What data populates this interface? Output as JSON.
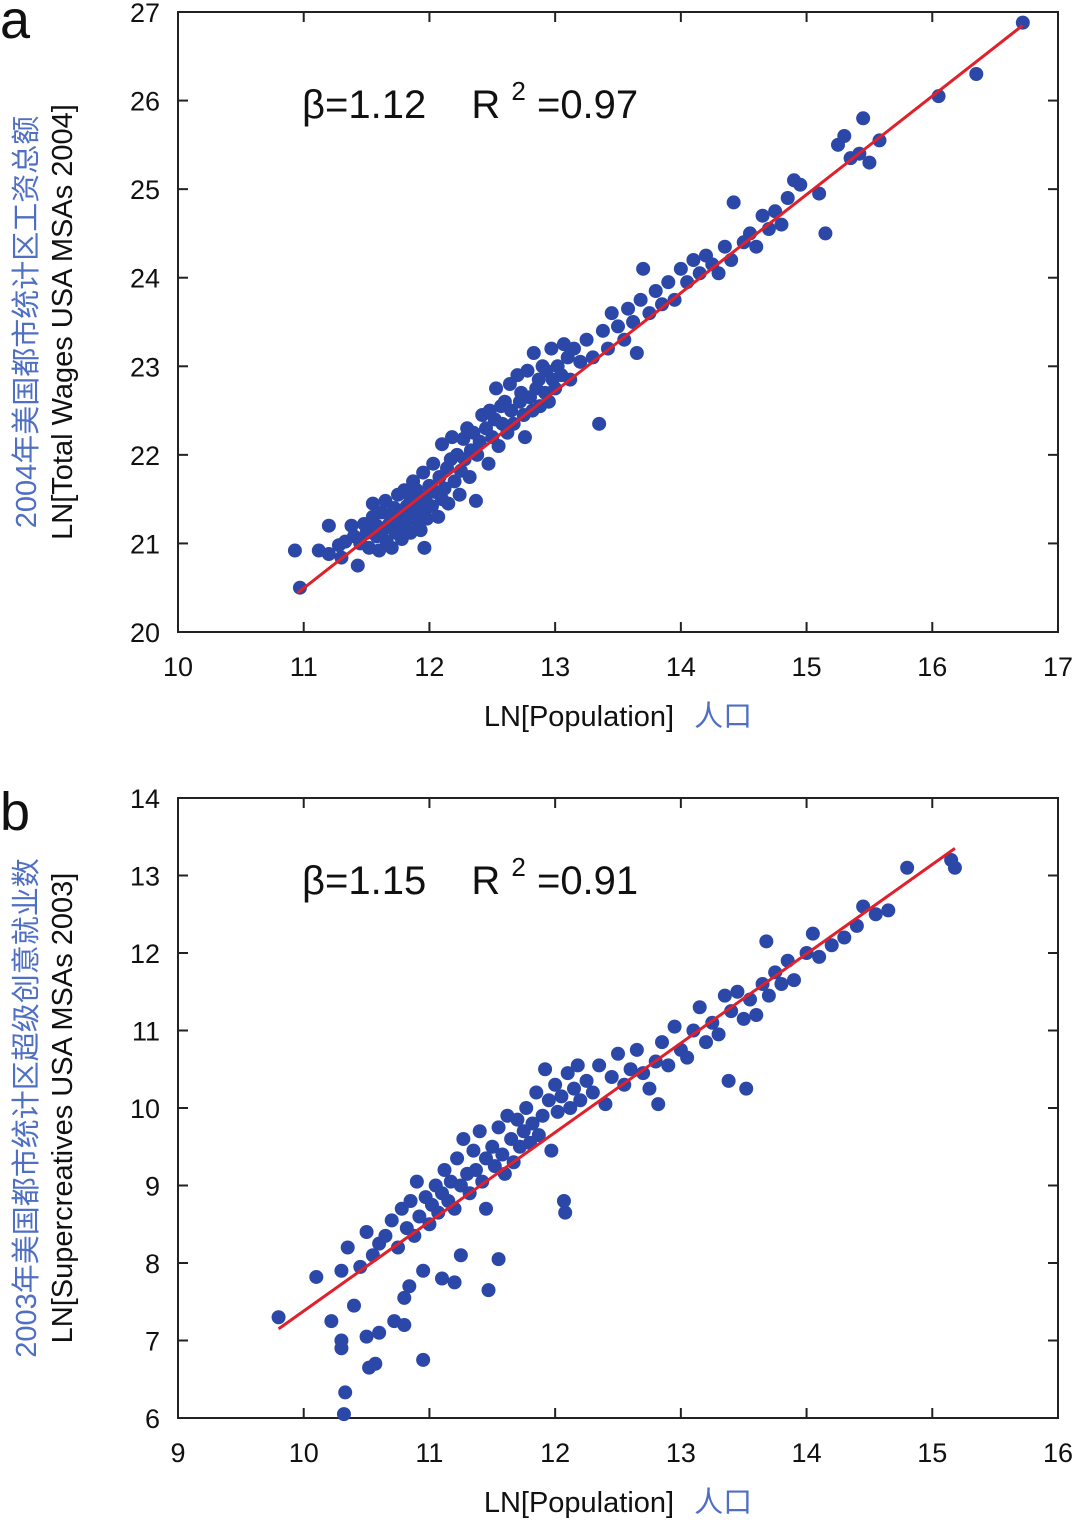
{
  "chart_data": [
    {
      "type": "scatter",
      "panel": "a",
      "annotation": {
        "beta": "β=1.12",
        "r2_prefix": "R",
        "r2_exp": "2",
        "r2_value": "=0.97"
      },
      "xlabel": "LN[Population]",
      "xlabel_cn": "人口",
      "ylabel": "LN[Total Wages USA MSAs 2004]",
      "ylabel_cn": "2004年美国都市统计区工资总额",
      "xlim": [
        10,
        17
      ],
      "ylim": [
        20,
        27
      ],
      "xticks": [
        "10",
        "11",
        "12",
        "13",
        "14",
        "15",
        "16",
        "17"
      ],
      "yticks": [
        "20",
        "21",
        "22",
        "23",
        "24",
        "25",
        "26",
        "27"
      ],
      "fit": {
        "x": [
          10.95,
          16.72
        ],
        "y": [
          20.44,
          26.85
        ]
      },
      "colors": {
        "points": "#2b47a8",
        "fit": "#e0202a",
        "cn_text": "#4f6fc4"
      },
      "points": [
        [
          10.93,
          20.92
        ],
        [
          10.97,
          20.5
        ],
        [
          11.12,
          20.92
        ],
        [
          11.2,
          20.88
        ],
        [
          11.2,
          21.2
        ],
        [
          11.28,
          20.98
        ],
        [
          11.3,
          20.84
        ],
        [
          11.33,
          21.02
        ],
        [
          11.38,
          21.2
        ],
        [
          11.4,
          21.08
        ],
        [
          11.43,
          20.75
        ],
        [
          11.45,
          21.0
        ],
        [
          11.48,
          21.22
        ],
        [
          11.5,
          21.12
        ],
        [
          11.52,
          20.95
        ],
        [
          11.55,
          21.3
        ],
        [
          11.55,
          21.45
        ],
        [
          11.58,
          21.08
        ],
        [
          11.58,
          21.2
        ],
        [
          11.6,
          20.92
        ],
        [
          11.62,
          21.35
        ],
        [
          11.63,
          21.15
        ],
        [
          11.65,
          21.48
        ],
        [
          11.66,
          21.02
        ],
        [
          11.68,
          21.22
        ],
        [
          11.7,
          21.3
        ],
        [
          11.7,
          20.95
        ],
        [
          11.72,
          21.4
        ],
        [
          11.73,
          21.12
        ],
        [
          11.75,
          21.55
        ],
        [
          11.75,
          21.25
        ],
        [
          11.77,
          21.35
        ],
        [
          11.78,
          21.05
        ],
        [
          11.8,
          21.6
        ],
        [
          11.8,
          21.2
        ],
        [
          11.82,
          21.42
        ],
        [
          11.83,
          21.3
        ],
        [
          11.85,
          21.5
        ],
        [
          11.85,
          21.12
        ],
        [
          11.87,
          21.7
        ],
        [
          11.88,
          21.38
        ],
        [
          11.9,
          21.25
        ],
        [
          11.9,
          21.6
        ],
        [
          11.92,
          21.45
        ],
        [
          11.93,
          21.15
        ],
        [
          11.95,
          21.8
        ],
        [
          11.95,
          21.35
        ],
        [
          11.96,
          20.95
        ],
        [
          11.97,
          21.52
        ],
        [
          11.98,
          21.28
        ],
        [
          12.0,
          21.65
        ],
        [
          12.02,
          21.42
        ],
        [
          12.03,
          21.9
        ],
        [
          12.05,
          21.58
        ],
        [
          12.07,
          21.3
        ],
        [
          12.08,
          21.75
        ],
        [
          12.1,
          22.12
        ],
        [
          12.1,
          21.5
        ],
        [
          12.12,
          21.62
        ],
        [
          12.14,
          21.85
        ],
        [
          12.15,
          21.45
        ],
        [
          12.17,
          21.95
        ],
        [
          12.18,
          22.2
        ],
        [
          12.2,
          21.7
        ],
        [
          12.22,
          22.0
        ],
        [
          12.24,
          21.55
        ],
        [
          12.25,
          21.82
        ],
        [
          12.27,
          22.18
        ],
        [
          12.28,
          21.95
        ],
        [
          12.3,
          22.3
        ],
        [
          12.32,
          21.75
        ],
        [
          12.33,
          22.05
        ],
        [
          12.35,
          22.25
        ],
        [
          12.37,
          21.48
        ],
        [
          12.38,
          22.0
        ],
        [
          12.4,
          22.15
        ],
        [
          12.42,
          22.45
        ],
        [
          12.45,
          22.3
        ],
        [
          12.47,
          21.9
        ],
        [
          12.48,
          22.5
        ],
        [
          12.5,
          22.2
        ],
        [
          12.52,
          22.4
        ],
        [
          12.53,
          22.75
        ],
        [
          12.55,
          22.1
        ],
        [
          12.57,
          22.55
        ],
        [
          12.58,
          22.35
        ],
        [
          12.6,
          22.6
        ],
        [
          12.62,
          22.25
        ],
        [
          12.64,
          22.8
        ],
        [
          12.65,
          22.5
        ],
        [
          12.67,
          22.35
        ],
        [
          12.7,
          22.9
        ],
        [
          12.72,
          22.6
        ],
        [
          12.73,
          22.7
        ],
        [
          12.75,
          22.45
        ],
        [
          12.76,
          22.2
        ],
        [
          12.78,
          22.95
        ],
        [
          12.8,
          22.65
        ],
        [
          12.82,
          22.5
        ],
        [
          12.83,
          23.15
        ],
        [
          12.85,
          22.75
        ],
        [
          12.87,
          22.85
        ],
        [
          12.88,
          22.55
        ],
        [
          12.9,
          23.0
        ],
        [
          12.92,
          22.7
        ],
        [
          12.93,
          22.95
        ],
        [
          12.95,
          22.6
        ],
        [
          12.97,
          23.2
        ],
        [
          12.98,
          22.85
        ],
        [
          13.0,
          22.75
        ],
        [
          13.02,
          23.0
        ],
        [
          13.05,
          22.9
        ],
        [
          13.07,
          23.25
        ],
        [
          13.1,
          23.1
        ],
        [
          13.12,
          22.85
        ],
        [
          13.15,
          23.2
        ],
        [
          13.2,
          23.05
        ],
        [
          13.25,
          23.3
        ],
        [
          13.3,
          23.1
        ],
        [
          13.35,
          22.35
        ],
        [
          13.38,
          23.4
        ],
        [
          13.42,
          23.2
        ],
        [
          13.45,
          23.6
        ],
        [
          13.5,
          23.45
        ],
        [
          13.55,
          23.3
        ],
        [
          13.58,
          23.65
        ],
        [
          13.62,
          23.5
        ],
        [
          13.65,
          23.15
        ],
        [
          13.68,
          23.75
        ],
        [
          13.7,
          24.1
        ],
        [
          13.75,
          23.6
        ],
        [
          13.8,
          23.85
        ],
        [
          13.85,
          23.7
        ],
        [
          13.9,
          23.95
        ],
        [
          13.95,
          23.75
        ],
        [
          14.0,
          24.1
        ],
        [
          14.05,
          23.95
        ],
        [
          14.1,
          24.2
        ],
        [
          14.15,
          24.05
        ],
        [
          14.2,
          24.25
        ],
        [
          14.25,
          24.15
        ],
        [
          14.3,
          24.05
        ],
        [
          14.35,
          24.35
        ],
        [
          14.4,
          24.2
        ],
        [
          14.42,
          24.85
        ],
        [
          14.5,
          24.4
        ],
        [
          14.55,
          24.5
        ],
        [
          14.6,
          24.35
        ],
        [
          14.65,
          24.7
        ],
        [
          14.7,
          24.55
        ],
        [
          14.75,
          24.75
        ],
        [
          14.8,
          24.6
        ],
        [
          14.85,
          24.9
        ],
        [
          14.9,
          25.1
        ],
        [
          14.95,
          25.05
        ],
        [
          15.1,
          24.95
        ],
        [
          15.15,
          24.5
        ],
        [
          15.25,
          25.5
        ],
        [
          15.3,
          25.6
        ],
        [
          15.35,
          25.35
        ],
        [
          15.42,
          25.4
        ],
        [
          15.45,
          25.8
        ],
        [
          15.5,
          25.3
        ],
        [
          15.58,
          25.55
        ],
        [
          16.05,
          26.05
        ],
        [
          16.35,
          26.3
        ],
        [
          16.72,
          26.88
        ]
      ]
    },
    {
      "type": "scatter",
      "panel": "b",
      "annotation": {
        "beta": "β=1.15",
        "r2_prefix": "R",
        "r2_exp": "2",
        "r2_value": "=0.91"
      },
      "xlabel": "LN[Population]",
      "xlabel_cn": "人口",
      "ylabel": "LN[Supercreatives USA MSAs 2003]",
      "ylabel_cn": "2003年美国都市统计区超级创意就业数",
      "xlim": [
        9,
        16
      ],
      "ylim": [
        6,
        14
      ],
      "xticks": [
        "9",
        "10",
        "11",
        "12",
        "13",
        "14",
        "15",
        "16"
      ],
      "yticks": [
        "6",
        "7",
        "8",
        "9",
        "10",
        "11",
        "12",
        "13",
        "14"
      ],
      "fit": {
        "x": [
          9.8,
          15.18
        ],
        "y": [
          7.15,
          13.35
        ]
      },
      "colors": {
        "points": "#2b47a8",
        "fit": "#e0202a",
        "cn_text": "#4f6fc4"
      },
      "points": [
        [
          9.8,
          7.3
        ],
        [
          10.1,
          7.82
        ],
        [
          10.22,
          7.25
        ],
        [
          10.3,
          7.9
        ],
        [
          10.3,
          7.0
        ],
        [
          10.3,
          6.9
        ],
        [
          10.32,
          6.05
        ],
        [
          10.33,
          6.33
        ],
        [
          10.35,
          8.2
        ],
        [
          10.4,
          7.45
        ],
        [
          10.45,
          7.95
        ],
        [
          10.5,
          8.4
        ],
        [
          10.5,
          7.05
        ],
        [
          10.52,
          6.65
        ],
        [
          10.55,
          8.1
        ],
        [
          10.57,
          6.7
        ],
        [
          10.6,
          8.25
        ],
        [
          10.6,
          7.1
        ],
        [
          10.65,
          8.35
        ],
        [
          10.7,
          8.55
        ],
        [
          10.72,
          7.25
        ],
        [
          10.75,
          8.2
        ],
        [
          10.78,
          8.7
        ],
        [
          10.8,
          7.55
        ],
        [
          10.8,
          7.2
        ],
        [
          10.82,
          8.45
        ],
        [
          10.84,
          7.7
        ],
        [
          10.85,
          8.8
        ],
        [
          10.88,
          8.35
        ],
        [
          10.9,
          9.05
        ],
        [
          10.92,
          8.6
        ],
        [
          10.95,
          7.9
        ],
        [
          10.95,
          6.75
        ],
        [
          10.97,
          8.85
        ],
        [
          11.0,
          8.5
        ],
        [
          11.02,
          8.75
        ],
        [
          11.05,
          9.0
        ],
        [
          11.07,
          8.65
        ],
        [
          11.1,
          8.9
        ],
        [
          11.1,
          7.8
        ],
        [
          11.12,
          9.2
        ],
        [
          11.15,
          8.8
        ],
        [
          11.17,
          9.05
        ],
        [
          11.2,
          8.7
        ],
        [
          11.2,
          7.75
        ],
        [
          11.22,
          9.35
        ],
        [
          11.25,
          9.0
        ],
        [
          11.25,
          8.1
        ],
        [
          11.27,
          9.6
        ],
        [
          11.3,
          9.15
        ],
        [
          11.32,
          8.9
        ],
        [
          11.35,
          9.45
        ],
        [
          11.37,
          9.2
        ],
        [
          11.4,
          9.7
        ],
        [
          11.42,
          9.05
        ],
        [
          11.45,
          9.35
        ],
        [
          11.45,
          8.7
        ],
        [
          11.47,
          7.65
        ],
        [
          11.5,
          9.5
        ],
        [
          11.52,
          9.25
        ],
        [
          11.55,
          9.75
        ],
        [
          11.55,
          8.05
        ],
        [
          11.58,
          9.4
        ],
        [
          11.6,
          9.15
        ],
        [
          11.62,
          9.9
        ],
        [
          11.65,
          9.6
        ],
        [
          11.67,
          9.3
        ],
        [
          11.7,
          9.85
        ],
        [
          11.72,
          9.5
        ],
        [
          11.75,
          9.7
        ],
        [
          11.77,
          10.0
        ],
        [
          11.8,
          9.55
        ],
        [
          11.82,
          9.8
        ],
        [
          11.85,
          10.2
        ],
        [
          11.87,
          9.65
        ],
        [
          11.9,
          9.9
        ],
        [
          11.92,
          10.5
        ],
        [
          11.95,
          10.1
        ],
        [
          11.97,
          9.45
        ],
        [
          12.0,
          10.3
        ],
        [
          12.02,
          9.95
        ],
        [
          12.05,
          10.15
        ],
        [
          12.07,
          8.8
        ],
        [
          12.08,
          8.65
        ],
        [
          12.1,
          10.45
        ],
        [
          12.12,
          10.0
        ],
        [
          12.15,
          10.25
        ],
        [
          12.18,
          10.55
        ],
        [
          12.2,
          10.1
        ],
        [
          12.25,
          10.35
        ],
        [
          12.3,
          10.2
        ],
        [
          12.35,
          10.55
        ],
        [
          12.4,
          10.05
        ],
        [
          12.45,
          10.4
        ],
        [
          12.5,
          10.7
        ],
        [
          12.55,
          10.3
        ],
        [
          12.6,
          10.5
        ],
        [
          12.65,
          10.75
        ],
        [
          12.7,
          10.45
        ],
        [
          12.75,
          10.25
        ],
        [
          12.8,
          10.6
        ],
        [
          12.82,
          10.05
        ],
        [
          12.85,
          10.85
        ],
        [
          12.9,
          10.55
        ],
        [
          12.95,
          11.05
        ],
        [
          13.0,
          10.75
        ],
        [
          13.05,
          10.65
        ],
        [
          13.1,
          11.0
        ],
        [
          13.15,
          11.3
        ],
        [
          13.2,
          10.85
        ],
        [
          13.25,
          11.1
        ],
        [
          13.3,
          10.95
        ],
        [
          13.35,
          11.45
        ],
        [
          13.38,
          10.35
        ],
        [
          13.4,
          11.25
        ],
        [
          13.45,
          11.5
        ],
        [
          13.5,
          11.15
        ],
        [
          13.52,
          10.25
        ],
        [
          13.55,
          11.4
        ],
        [
          13.6,
          11.2
        ],
        [
          13.65,
          11.6
        ],
        [
          13.68,
          12.15
        ],
        [
          13.7,
          11.45
        ],
        [
          13.75,
          11.75
        ],
        [
          13.8,
          11.6
        ],
        [
          13.85,
          11.9
        ],
        [
          13.9,
          11.65
        ],
        [
          14.0,
          12.0
        ],
        [
          14.05,
          12.25
        ],
        [
          14.1,
          11.95
        ],
        [
          14.2,
          12.1
        ],
        [
          14.3,
          12.2
        ],
        [
          14.4,
          12.35
        ],
        [
          14.45,
          12.6
        ],
        [
          14.55,
          12.5
        ],
        [
          14.65,
          12.55
        ],
        [
          14.8,
          13.1
        ],
        [
          15.15,
          13.2
        ],
        [
          15.18,
          13.1
        ]
      ]
    }
  ]
}
